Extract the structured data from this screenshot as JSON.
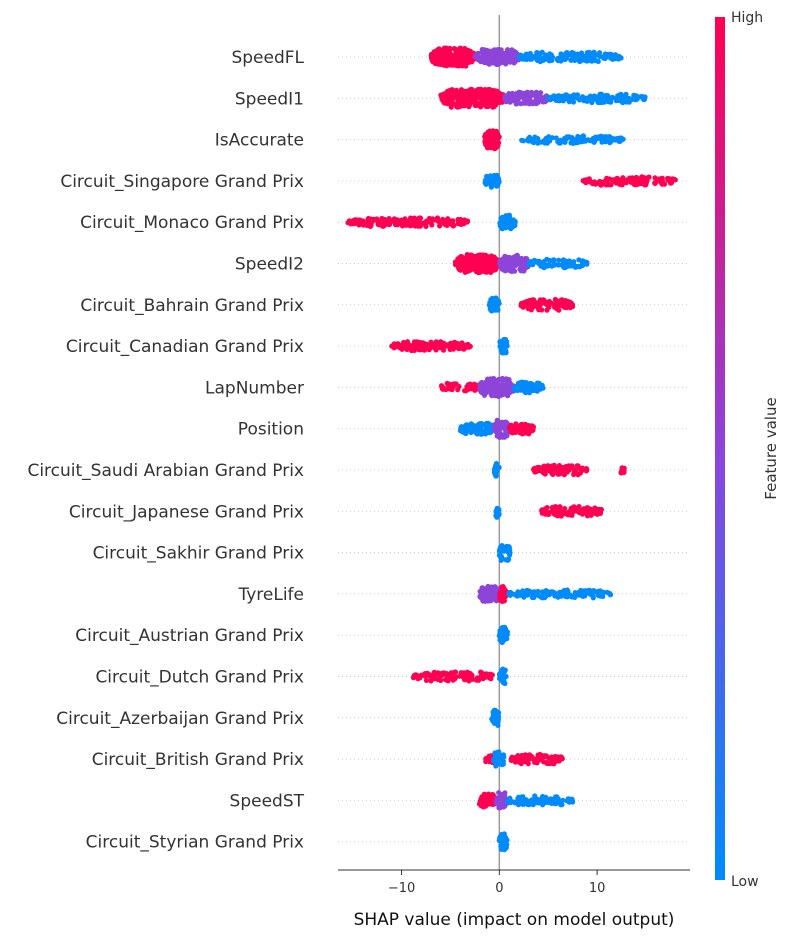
{
  "chart_data": {
    "type": "scatter",
    "subtype": "shap_beeswarm",
    "title": "",
    "xlabel": "SHAP value (impact on model output)",
    "ylabel": "",
    "xlim": [
      -16.5,
      19.5
    ],
    "xticks": [
      -10,
      0,
      10
    ],
    "xtick_labels": [
      "−10",
      "0",
      "10"
    ],
    "grid": false,
    "colors": {
      "low": "#008BFB",
      "high": "#FF0052",
      "mid": "#8C44D9",
      "zero_line": "#999999",
      "row_guides": "#cccccc"
    },
    "colorbar": {
      "title": "Feature value",
      "high_label": "High",
      "low_label": "Low"
    },
    "features": [
      {
        "name": "SpeedFL",
        "clusters": [
          {
            "range": [
              -7.0,
              -2.5
            ],
            "color": "high",
            "density": 3.0
          },
          {
            "range": [
              -2.5,
              2.0
            ],
            "color": "mid",
            "density": 2.0
          },
          {
            "range": [
              2.0,
              12.5
            ],
            "color": "low",
            "density": 1.0
          }
        ]
      },
      {
        "name": "SpeedI1",
        "clusters": [
          {
            "range": [
              -6.0,
              0.5
            ],
            "color": "high",
            "density": 2.8
          },
          {
            "range": [
              0.5,
              5.0
            ],
            "color": "mid",
            "density": 1.5
          },
          {
            "range": [
              5.0,
              15.0
            ],
            "color": "low",
            "density": 0.8
          }
        ]
      },
      {
        "name": "IsAccurate",
        "clusters": [
          {
            "range": [
              -1.5,
              0.0
            ],
            "color": "high",
            "density": 2.5
          },
          {
            "range": [
              2.2,
              12.7
            ],
            "color": "low",
            "density": 0.6
          }
        ]
      },
      {
        "name": "Circuit_Singapore Grand Prix",
        "clusters": [
          {
            "range": [
              -1.5,
              0.0
            ],
            "color": "low",
            "density": 1.6
          },
          {
            "range": [
              8.5,
              18.0
            ],
            "color": "high",
            "density": 0.8
          }
        ]
      },
      {
        "name": "Circuit_Monaco Grand Prix",
        "clusters": [
          {
            "range": [
              -15.5,
              -3.0
            ],
            "color": "high",
            "density": 0.8
          },
          {
            "range": [
              0.0,
              1.7
            ],
            "color": "low",
            "density": 1.8
          }
        ]
      },
      {
        "name": "SpeedI2",
        "clusters": [
          {
            "range": [
              -4.5,
              0.0
            ],
            "color": "high",
            "density": 2.6
          },
          {
            "range": [
              0.0,
              3.0
            ],
            "color": "mid",
            "density": 2.2
          },
          {
            "range": [
              3.0,
              9.0
            ],
            "color": "low",
            "density": 0.8
          }
        ]
      },
      {
        "name": "Circuit_Bahrain Grand Prix",
        "clusters": [
          {
            "range": [
              -1.0,
              0.0
            ],
            "color": "low",
            "density": 1.8
          },
          {
            "range": [
              2.2,
              7.5
            ],
            "color": "high",
            "density": 1.2
          }
        ]
      },
      {
        "name": "Circuit_Canadian Grand Prix",
        "clusters": [
          {
            "range": [
              -11.0,
              -2.8
            ],
            "color": "high",
            "density": 0.9
          },
          {
            "range": [
              0.0,
              0.8
            ],
            "color": "low",
            "density": 2.0
          }
        ]
      },
      {
        "name": "LapNumber",
        "clusters": [
          {
            "range": [
              -6.0,
              -2.0
            ],
            "color": "high",
            "density": 0.7
          },
          {
            "range": [
              -2.0,
              1.5
            ],
            "color": "mid",
            "density": 2.5
          },
          {
            "range": [
              1.5,
              4.5
            ],
            "color": "low",
            "density": 1.2
          }
        ]
      },
      {
        "name": "Position",
        "clusters": [
          {
            "range": [
              -4.0,
              -0.5
            ],
            "color": "low",
            "density": 1.3
          },
          {
            "range": [
              -0.5,
              1.0
            ],
            "color": "mid",
            "density": 2.4
          },
          {
            "range": [
              1.0,
              3.5
            ],
            "color": "high",
            "density": 1.2
          }
        ]
      },
      {
        "name": "Circuit_Saudi Arabian Grand Prix",
        "clusters": [
          {
            "range": [
              -0.5,
              0.0
            ],
            "color": "low",
            "density": 1.6
          },
          {
            "range": [
              3.5,
              9.0
            ],
            "color": "high",
            "density": 1.0
          },
          {
            "range": [
              12.4,
              12.8
            ],
            "color": "high",
            "density": 0.4
          }
        ]
      },
      {
        "name": "Circuit_Japanese Grand Prix",
        "clusters": [
          {
            "range": [
              -0.4,
              0.0
            ],
            "color": "low",
            "density": 1.6
          },
          {
            "range": [
              4.2,
              10.5
            ],
            "color": "high",
            "density": 1.0
          }
        ]
      },
      {
        "name": "Circuit_Sakhir Grand Prix",
        "clusters": [
          {
            "range": [
              0.0,
              1.1
            ],
            "color": "low",
            "density": 2.2
          }
        ]
      },
      {
        "name": "TyreLife",
        "clusters": [
          {
            "range": [
              -2.0,
              0.0
            ],
            "color": "mid",
            "density": 2.0
          },
          {
            "range": [
              0.0,
              0.8
            ],
            "color": "high",
            "density": 2.0
          },
          {
            "range": [
              0.8,
              11.5
            ],
            "color": "low",
            "density": 0.7
          }
        ]
      },
      {
        "name": "Circuit_Austrian Grand Prix",
        "clusters": [
          {
            "range": [
              0.0,
              0.9
            ],
            "color": "low",
            "density": 2.2
          }
        ]
      },
      {
        "name": "Circuit_Dutch Grand Prix",
        "clusters": [
          {
            "range": [
              -8.8,
              -0.5
            ],
            "color": "high",
            "density": 0.9
          },
          {
            "range": [
              0.0,
              0.7
            ],
            "color": "low",
            "density": 2.0
          }
        ]
      },
      {
        "name": "Circuit_Azerbaijan Grand Prix",
        "clusters": [
          {
            "range": [
              -0.8,
              0.0
            ],
            "color": "low",
            "density": 2.2
          }
        ]
      },
      {
        "name": "Circuit_British Grand Prix",
        "clusters": [
          {
            "range": [
              -1.5,
              -0.5
            ],
            "color": "high",
            "density": 0.6
          },
          {
            "range": [
              -0.6,
              0.5
            ],
            "color": "low",
            "density": 2.0
          },
          {
            "range": [
              1.2,
              6.5
            ],
            "color": "high",
            "density": 1.0
          }
        ]
      },
      {
        "name": "SpeedST",
        "clusters": [
          {
            "range": [
              -2.2,
              -0.3
            ],
            "color": "high",
            "density": 1.6
          },
          {
            "range": [
              -0.3,
              0.8
            ],
            "color": "mid",
            "density": 2.2
          },
          {
            "range": [
              0.8,
              7.5
            ],
            "color": "low",
            "density": 0.9
          }
        ]
      },
      {
        "name": "Circuit_Styrian Grand Prix",
        "clusters": [
          {
            "range": [
              0.0,
              0.8
            ],
            "color": "low",
            "density": 2.2
          }
        ]
      }
    ]
  }
}
